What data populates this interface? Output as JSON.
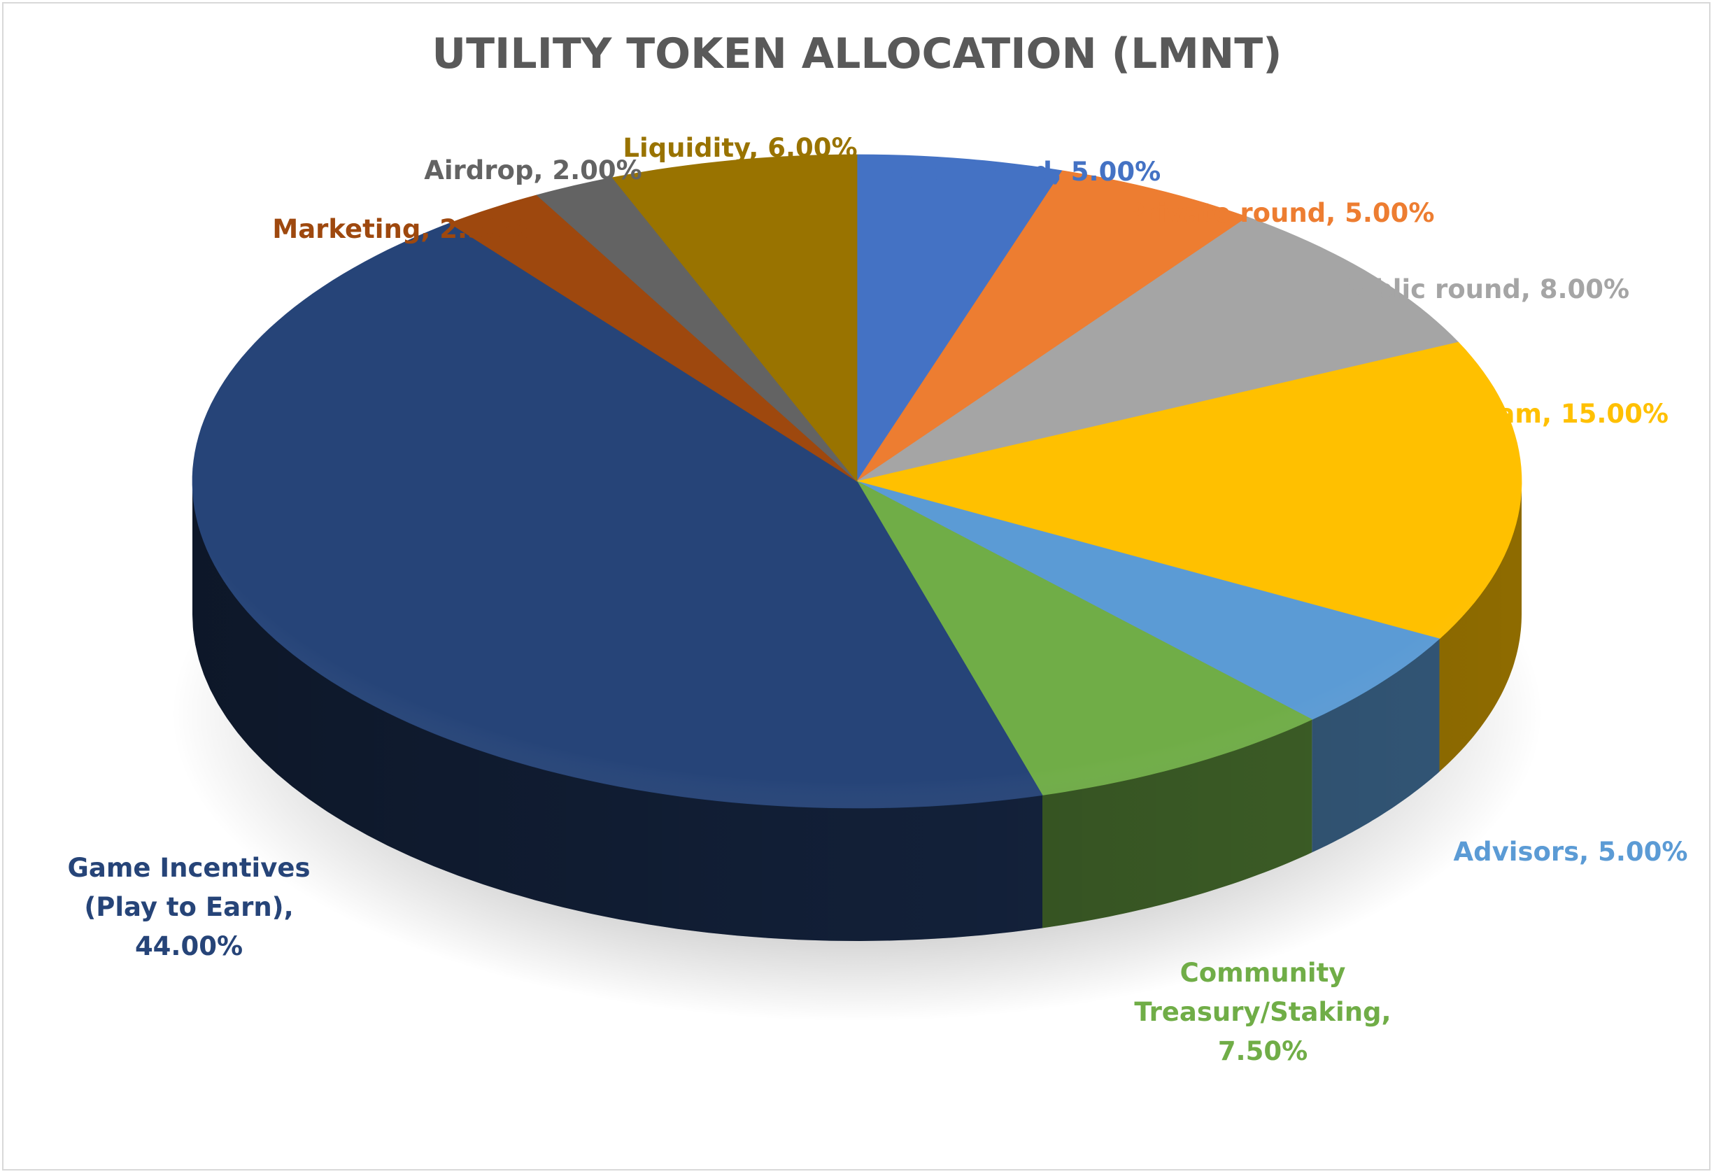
{
  "chart_data": {
    "type": "pie",
    "title": "UTILITY TOKEN ALLOCATION (LMNT)",
    "slices": [
      {
        "label": "Seed round",
        "value": 5.0,
        "display": "5.00%",
        "color": "#4472C4",
        "label_color": "#4472C4"
      },
      {
        "label": "Private round",
        "value": 5.0,
        "display": "5.00%",
        "color": "#ED7D31",
        "label_color": "#ED7D31"
      },
      {
        "label": "Public round",
        "value": 8.0,
        "display": "8.00%",
        "color": "#A5A5A5",
        "label_color": "#A5A5A5"
      },
      {
        "label": "Team",
        "value": 15.0,
        "display": "15.00%",
        "color": "#FFC000",
        "label_color": "#FFC000"
      },
      {
        "label": "Advisors",
        "value": 5.0,
        "display": "5.00%",
        "color": "#5B9BD5",
        "label_color": "#5B9BD5"
      },
      {
        "label": "Community Treasury/Staking",
        "value": 7.5,
        "display": "7.50%",
        "color": "#70AD47",
        "label_color": "#70AD47"
      },
      {
        "label": "Game Incentives (Play to Earn)",
        "value": 44.0,
        "display": "44.00%",
        "color": "#264478",
        "label_color": "#264478"
      },
      {
        "label": "Marketing",
        "value": 2.5,
        "display": "2.50%",
        "color": "#9E480E",
        "label_color": "#9E480E"
      },
      {
        "label": "Airdrop",
        "value": 2.0,
        "display": "2.00%",
        "color": "#636363",
        "label_color": "#636363"
      },
      {
        "label": "Liquidity",
        "value": 6.0,
        "display": "6.00%",
        "color": "#997300",
        "label_color": "#997300"
      }
    ],
    "legend": "none"
  }
}
